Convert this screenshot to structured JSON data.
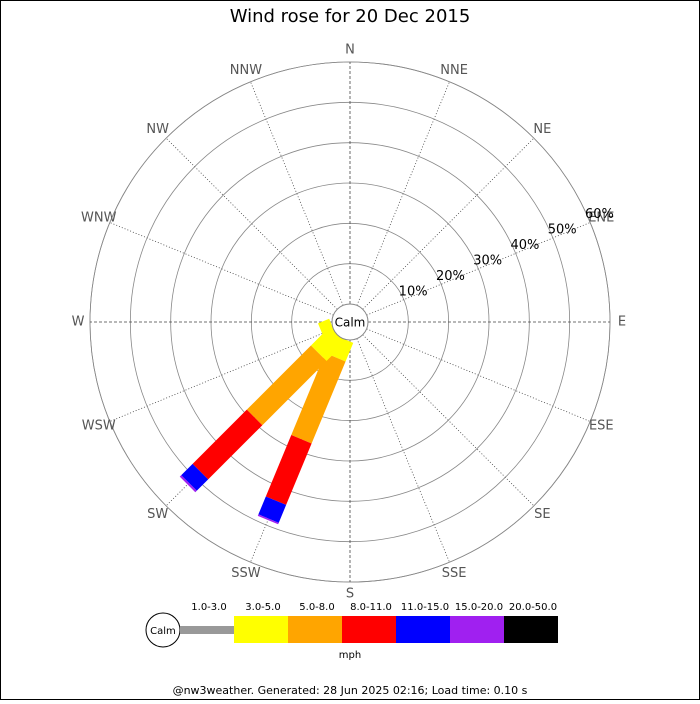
{
  "chart_data": {
    "type": "windrose",
    "title": "Wind rose for 20 Dec 2015",
    "categories": [
      "N",
      "NNE",
      "NE",
      "ENE",
      "E",
      "ESE",
      "SE",
      "SSE",
      "S",
      "SSW",
      "SW",
      "WSW",
      "W",
      "WNW",
      "NW",
      "NNW"
    ],
    "calm_label": "Calm",
    "ylim": [
      0,
      60
    ],
    "yticks": [
      {
        "value": 10,
        "label": "10%"
      },
      {
        "value": 20,
        "label": "20%"
      },
      {
        "value": 30,
        "label": "30%"
      },
      {
        "value": 40,
        "label": "40%"
      },
      {
        "value": 50,
        "label": "50%"
      },
      {
        "value": 60,
        "label": "60%"
      }
    ],
    "series": [
      {
        "name": "1.0-3.0",
        "color": "#999999",
        "values": [
          0,
          0,
          0,
          0,
          0,
          0,
          0,
          0,
          0,
          0,
          0,
          0,
          0,
          0,
          0,
          0
        ]
      },
      {
        "name": "3.0-5.0",
        "color": "#ffff00",
        "values": [
          0,
          0,
          0,
          0,
          0,
          0,
          0,
          0,
          0,
          5,
          6.5,
          3,
          0,
          0,
          0,
          0
        ]
      },
      {
        "name": "5.0-8.0",
        "color": "#ffa500",
        "values": [
          0,
          0,
          0,
          0,
          0,
          0,
          0,
          0,
          0,
          22,
          22.5,
          0,
          0,
          0,
          0,
          0
        ]
      },
      {
        "name": "8.0-11.0",
        "color": "#ff0000",
        "values": [
          0,
          0,
          0,
          0,
          0,
          0,
          0,
          0,
          0,
          16.5,
          19,
          0,
          0,
          0,
          0,
          0
        ]
      },
      {
        "name": "11.0-15.0",
        "color": "#0000ff",
        "values": [
          0,
          0,
          0,
          0,
          0,
          0,
          0,
          0,
          0,
          4.8,
          4,
          0,
          0,
          0,
          0,
          0
        ]
      },
      {
        "name": "15.0-20.0",
        "color": "#a020f0",
        "values": [
          0,
          0,
          0,
          0,
          0,
          0,
          0,
          0,
          0,
          0.4,
          0.5,
          0,
          0,
          0,
          0,
          0
        ]
      },
      {
        "name": "20.0-50.0",
        "color": "#000000",
        "values": [
          0,
          0,
          0,
          0,
          0,
          0,
          0,
          0,
          0,
          0,
          0,
          0,
          0,
          0,
          0,
          0
        ]
      }
    ],
    "legend_unit": "mph",
    "footer": "@nw3weather. Generated: 28 Jun 2025 02:16; Load time: 0.10 s"
  }
}
